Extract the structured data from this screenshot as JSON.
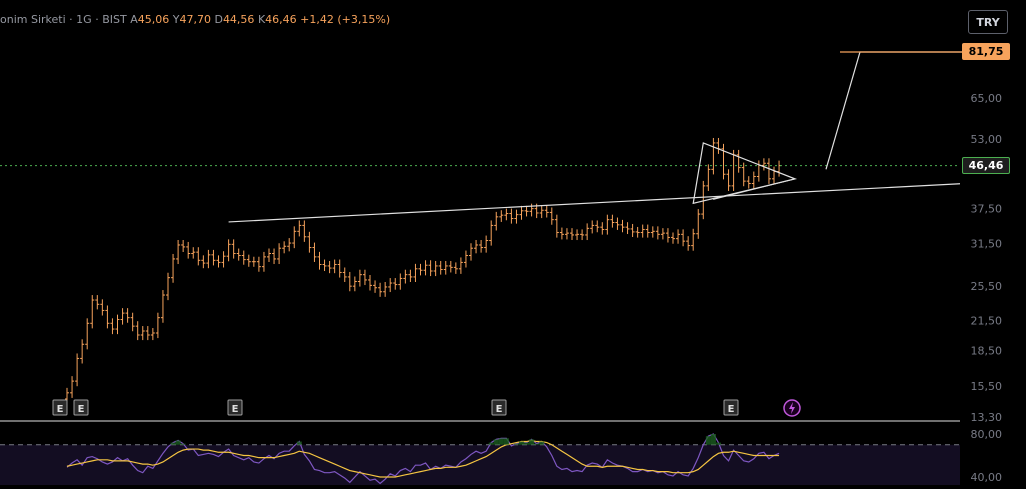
{
  "legend": {
    "name": "onim Sirketi",
    "interval": "1G",
    "exchange": "BIST",
    "open_label": "A",
    "open": "45,06",
    "high_label": "Y",
    "high": "47,70",
    "low_label": "D",
    "low": "44,56",
    "close_label": "K",
    "close": "46,46",
    "change": "+1,42 (+3,15%)"
  },
  "currency": "TRY",
  "price_axis": [
    "65,00",
    "53,00",
    "37,50",
    "31,50",
    "25,50",
    "21,50",
    "18,50",
    "15,50",
    "13,30"
  ],
  "rsi_axis": [
    "80,00",
    "40,00"
  ],
  "target_price": "81,75",
  "last_price": "46,46",
  "earnings_marker": "E",
  "colors": {
    "candle": "#f7a35c",
    "last_price": "#4caf50",
    "target": "#f7a35c",
    "rsi": "#7e57c2",
    "rsi_ma": "#f5c542",
    "lines": "#e0e0e0",
    "lightning": "#c158dc"
  },
  "icons": {
    "earnings": "earnings-e-icon",
    "event": "lightning-icon"
  },
  "chart_data": {
    "type": "candlestick",
    "scale": "logarithmic",
    "ylim": [
      13.3,
      81.75
    ],
    "price_series": [
      15.0,
      15.9,
      17.8,
      19.1,
      21.2,
      23.8,
      23.3,
      22.6,
      21.2,
      20.6,
      21.6,
      22.3,
      21.8,
      20.9,
      20.0,
      20.4,
      20.0,
      20.2,
      21.8,
      24.4,
      26.6,
      29.2,
      31.3,
      31.0,
      30.0,
      30.2,
      29.0,
      28.6,
      29.8,
      29.0,
      28.7,
      29.6,
      31.4,
      30.0,
      29.7,
      29.1,
      28.8,
      28.8,
      28.1,
      29.5,
      30.0,
      29.2,
      30.8,
      31.1,
      31.6,
      33.5,
      34.5,
      32.6,
      30.9,
      29.5,
      28.4,
      28.2,
      27.9,
      28.4,
      27.3,
      26.7,
      25.5,
      26.1,
      27.0,
      26.3,
      25.6,
      25.3,
      24.8,
      25.4,
      25.9,
      25.7,
      26.5,
      27.0,
      26.7,
      27.8,
      27.6,
      28.3,
      27.5,
      28.2,
      27.7,
      28.2,
      28.0,
      27.8,
      28.7,
      29.7,
      30.8,
      31.3,
      30.9,
      32.0,
      34.5,
      36.0,
      36.3,
      36.6,
      35.7,
      36.4,
      37.1,
      37.0,
      37.5,
      36.7,
      37.2,
      36.8,
      35.5,
      33.3,
      33.0,
      33.2,
      32.9,
      33.0,
      32.9,
      34.0,
      34.5,
      34.2,
      33.8,
      35.5,
      35.0,
      34.6,
      34.2,
      33.9,
      33.4,
      33.3,
      33.8,
      33.3,
      33.5,
      33.0,
      33.2,
      32.5,
      32.3,
      33.0,
      31.9,
      31.2,
      33.1,
      36.5,
      42.0,
      45.6,
      52.0,
      50.5,
      44.5,
      42.0,
      49.0,
      46.0,
      43.0,
      42.5,
      44.0,
      46.5,
      47.0,
      43.5,
      45.1,
      46.46
    ],
    "rsi": [
      49,
      53,
      56,
      51,
      58,
      59,
      57,
      54,
      52,
      54,
      58,
      55,
      57,
      51,
      46,
      44,
      50,
      48,
      55,
      62,
      68,
      72,
      74,
      71,
      65,
      66,
      60,
      61,
      62,
      61,
      59,
      63,
      66,
      60,
      58,
      56,
      58,
      54,
      53,
      57,
      60,
      57,
      62,
      64,
      64,
      69,
      73,
      61,
      55,
      47,
      46,
      44,
      44,
      45,
      42,
      39,
      35,
      40,
      45,
      41,
      37,
      38,
      34,
      38,
      43,
      41,
      46,
      48,
      45,
      51,
      51,
      53,
      47,
      50,
      48,
      51,
      50,
      49,
      54,
      57,
      61,
      64,
      62,
      64,
      72,
      75,
      76,
      76,
      69,
      71,
      73,
      72,
      75,
      71,
      73,
      68,
      60,
      50,
      47,
      48,
      45,
      46,
      45,
      51,
      53,
      52,
      49,
      56,
      53,
      51,
      50,
      48,
      45,
      45,
      47,
      45,
      46,
      44,
      45,
      42,
      41,
      45,
      42,
      41,
      48,
      58,
      70,
      78,
      80,
      72,
      60,
      55,
      65,
      60,
      55,
      54,
      57,
      62,
      63,
      57,
      60,
      62
    ],
    "rsi_ma": [
      50,
      51,
      52,
      53,
      54,
      55,
      56,
      56,
      56,
      55,
      55,
      55,
      55,
      54,
      53,
      52,
      52,
      51,
      52,
      54,
      57,
      60,
      63,
      65,
      66,
      66,
      66,
      65,
      65,
      64,
      63,
      63,
      63,
      62,
      61,
      60,
      60,
      59,
      58,
      58,
      58,
      58,
      59,
      60,
      61,
      62,
      64,
      63,
      62,
      60,
      58,
      56,
      54,
      52,
      50,
      48,
      46,
      45,
      44,
      43,
      42,
      41,
      40,
      40,
      40,
      40,
      41,
      42,
      43,
      44,
      45,
      46,
      47,
      48,
      48,
      49,
      49,
      49,
      50,
      51,
      53,
      55,
      57,
      59,
      62,
      65,
      68,
      70,
      71,
      72,
      73,
      73,
      74,
      73,
      73,
      72,
      70,
      67,
      64,
      61,
      58,
      55,
      52,
      50,
      50,
      50,
      49,
      50,
      50,
      50,
      50,
      49,
      48,
      47,
      47,
      46,
      46,
      45,
      45,
      45,
      44,
      44,
      44,
      44,
      45,
      47,
      51,
      55,
      59,
      62,
      63,
      63,
      64,
      63,
      62,
      61,
      60,
      60,
      60,
      60,
      60,
      60
    ],
    "rsi_levels": [
      70,
      30
    ],
    "earnings_marker_bars": [
      0,
      1,
      19,
      53,
      124
    ],
    "trendlines": [
      {
        "from": [
          32,
          35.1
        ],
        "to": [
          143,
          40.6
        ]
      },
      {
        "from": [
          139,
          45.6
        ],
        "to": [
          150,
          81.75
        ]
      }
    ],
    "pennant": [
      [
        124,
        38.5
      ],
      [
        126,
        52.0
      ],
      [
        141,
        44.8
      ]
    ]
  }
}
